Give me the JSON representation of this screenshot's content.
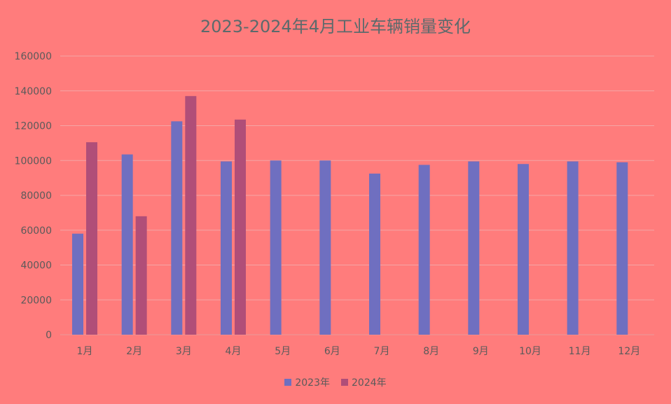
{
  "chart_data": {
    "type": "bar",
    "title": "2023-2024年4月工业车辆销量变化",
    "xlabel": "",
    "ylabel": "",
    "categories": [
      "1月",
      "2月",
      "3月",
      "4月",
      "5月",
      "6月",
      "7月",
      "8月",
      "9月",
      "10月",
      "11月",
      "12月"
    ],
    "series": [
      {
        "name": "2023年",
        "color": "#6f6fc0",
        "values": [
          58000,
          103500,
          122500,
          99500,
          100000,
          100000,
          92500,
          97500,
          99500,
          98000,
          99500,
          99000
        ]
      },
      {
        "name": "2024年",
        "color": "#b04e78",
        "values": [
          110500,
          68000,
          137000,
          123500,
          null,
          null,
          null,
          null,
          null,
          null,
          null,
          null
        ]
      }
    ],
    "ylim": [
      0,
      160000
    ],
    "yticks": [
      0,
      20000,
      40000,
      60000,
      80000,
      100000,
      120000,
      140000,
      160000
    ],
    "grid": true,
    "legend_position": "bottom",
    "background": "#ff7c7c",
    "gridline_color": "#f4a6a6"
  }
}
